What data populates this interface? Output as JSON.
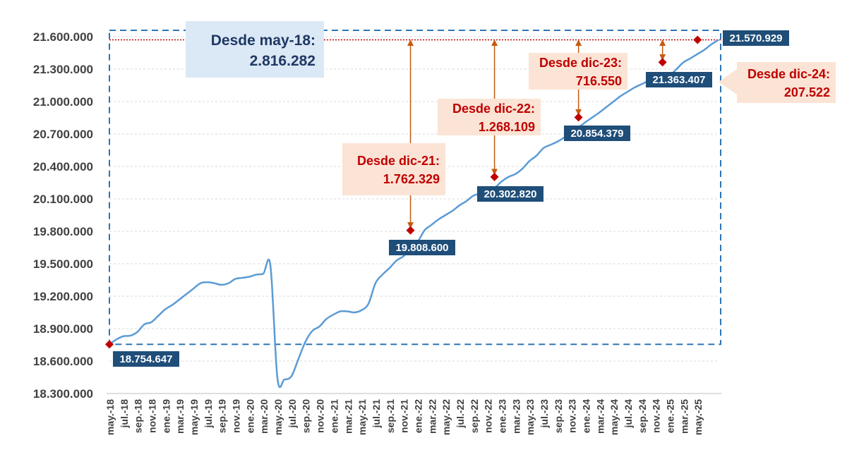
{
  "chart_data": {
    "type": "line",
    "ylim": [
      18300000,
      21600000
    ],
    "yticks": [
      "18.300.000",
      "18.600.000",
      "18.900.000",
      "19.200.000",
      "19.500.000",
      "19.800.000",
      "20.100.000",
      "20.400.000",
      "20.700.000",
      "21.000.000",
      "21.300.000",
      "21.600.000"
    ],
    "xticks": [
      "may.-18",
      "jul.-18",
      "sep.-18",
      "nov.-18",
      "ene.-19",
      "mar.-19",
      "may.-19",
      "jul.-19",
      "sep.-19",
      "nov.-19",
      "ene.-20",
      "mar.-20",
      "may.-20",
      "jul.-20",
      "sep.-20",
      "nov.-20",
      "ene.-21",
      "mar.-21",
      "may.-21",
      "jul.-21",
      "sep.-21",
      "nov.-21",
      "ene.-22",
      "mar.-22",
      "may.-22",
      "jul.-22",
      "sep.-22",
      "nov.-22",
      "ene.-23",
      "mar.-23",
      "may.-23",
      "jul.-23",
      "sep.-23",
      "nov.-23",
      "ene.-24",
      "mar.-24",
      "may.-24",
      "jul.-24",
      "sep.-24",
      "nov.-24",
      "ene.-25",
      "mar.-25",
      "may.-25"
    ],
    "series": [
      {
        "color": "#5b9bd5",
        "values": [
          18754647,
          18800000,
          18830000,
          18835000,
          18870000,
          18940000,
          18960000,
          19020000,
          19080000,
          19120000,
          19170000,
          19220000,
          19270000,
          19320000,
          19330000,
          19320000,
          19305000,
          19320000,
          19360000,
          19370000,
          19380000,
          19400000,
          19410000,
          19480000,
          18440000,
          18430000,
          18460000,
          18620000,
          18780000,
          18880000,
          18920000,
          18990000,
          19030000,
          19060000,
          19060000,
          19050000,
          19070000,
          19130000,
          19320000,
          19400000,
          19460000,
          19530000,
          19570000,
          19640000,
          19700000,
          19808600,
          19860000,
          19910000,
          19950000,
          19990000,
          20040000,
          20080000,
          20130000,
          20150000,
          20160000,
          20200000,
          20260000,
          20302820,
          20330000,
          20380000,
          20450000,
          20500000,
          20570000,
          20600000,
          20630000,
          20670000,
          20720000,
          20760000,
          20810000,
          20854379,
          20900000,
          20950000,
          21000000,
          21050000,
          21090000,
          21130000,
          21160000,
          21190000,
          21200000,
          21210000,
          21240000,
          21300000,
          21363407,
          21400000,
          21440000,
          21480000,
          21530000,
          21570929
        ]
      }
    ],
    "markers": [
      {
        "x_label": "may.-18",
        "value": 18754647,
        "label": "18.754.647"
      },
      {
        "x_label": "dic.-21",
        "value": 19808600,
        "label": "19.808.600"
      },
      {
        "x_label": "dic.-22",
        "value": 20302820,
        "label": "20.302.820"
      },
      {
        "x_label": "dic.-23",
        "value": 20854379,
        "label": "20.854.379"
      },
      {
        "x_label": "dic.-24",
        "value": 21363407,
        "label": "21.363.407"
      },
      {
        "x_label": "may.-25",
        "value": 21570929,
        "label": "21.570.929"
      }
    ],
    "annotations": [
      {
        "line1": "Desde may-18:",
        "line2": "2.816.282"
      },
      {
        "line1": "Desde dic-21:",
        "line2": "1.762.329"
      },
      {
        "line1": "Desde dic-22:",
        "line2": "1.268.109"
      },
      {
        "line1": "Desde dic-23:",
        "line2": "716.550"
      },
      {
        "line1": "Desde dic-24:",
        "line2": "207.522"
      }
    ],
    "grid": true,
    "colors": {
      "line": "#5b9bd5",
      "marker": "#c00000",
      "marker_label_bg": "#1f4e79",
      "marker_label_text": "#ffffff",
      "annotation_main_bg": "#dbe8f5",
      "annotation_main_text": "#1f3864",
      "annotation_bg": "#fbe4d5",
      "annotation_text": "#c00000",
      "arrow": "#c55a11",
      "reference_line": "#c00000",
      "dashed_box": "#2e75b6",
      "grid": "#d9d9d9",
      "axis_text": "#404040"
    }
  }
}
